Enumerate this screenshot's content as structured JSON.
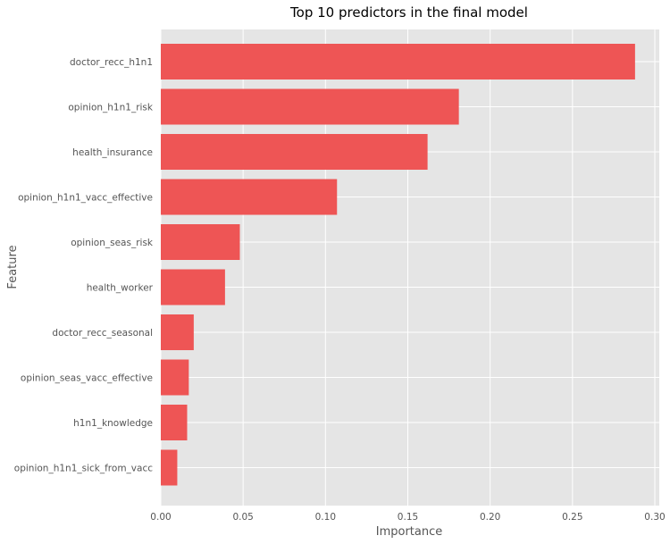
{
  "chart_data": {
    "type": "bar",
    "orientation": "horizontal",
    "title": "Top 10 predictors in the final model",
    "xlabel": "Importance",
    "ylabel": "Feature",
    "categories": [
      "doctor_recc_h1n1",
      "opinion_h1n1_risk",
      "health_insurance",
      "opinion_h1n1_vacc_effective",
      "opinion_seas_risk",
      "health_worker",
      "doctor_recc_seasonal",
      "opinion_seas_vacc_effective",
      "h1n1_knowledge",
      "opinion_h1n1_sick_from_vacc"
    ],
    "values": [
      0.288,
      0.181,
      0.162,
      0.107,
      0.048,
      0.039,
      0.02,
      0.017,
      0.016,
      0.01
    ],
    "xlim": [
      0,
      0.302
    ],
    "xticks": [
      0.0,
      0.05,
      0.1,
      0.15,
      0.2,
      0.25,
      0.3
    ],
    "xtick_labels": [
      "0.00",
      "0.05",
      "0.10",
      "0.15",
      "0.20",
      "0.25",
      "0.30"
    ],
    "grid": true,
    "legend": "none",
    "colors": {
      "bar": "#ee5555",
      "plot_background": "#e5e5e5",
      "grid": "#ffffff"
    }
  }
}
